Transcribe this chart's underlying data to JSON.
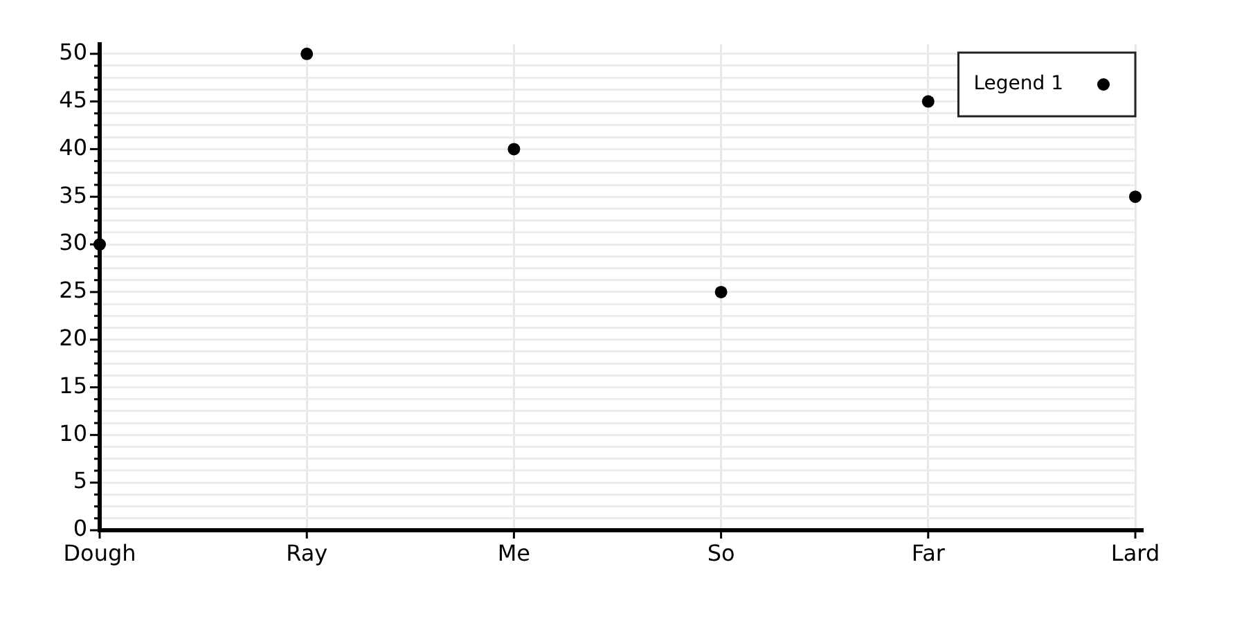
{
  "chart_data": {
    "type": "scatter",
    "categories": [
      "Dough",
      "Ray",
      "Me",
      "So",
      "Far",
      "Lard"
    ],
    "series": [
      {
        "name": "Legend 1",
        "color": "#000000",
        "values": [
          30,
          50,
          40,
          25,
          45,
          35
        ]
      }
    ],
    "ylim": [
      0,
      51
    ],
    "yticks": [
      0,
      {
        "value": 1.25,
        "label": null
      },
      {
        "value": 2.5,
        "label": null
      },
      {
        "value": 3.75,
        "label": null
      },
      5,
      {
        "value": 6.25,
        "label": null
      },
      {
        "value": 7.5,
        "label": null
      },
      {
        "value": 8.75,
        "label": null
      },
      10,
      {
        "value": 11.25,
        "label": null
      },
      {
        "value": 12.5,
        "label": null
      },
      {
        "value": 13.75,
        "label": null
      },
      15,
      {
        "value": 16.25,
        "label": null
      },
      {
        "value": 17.5,
        "label": null
      },
      {
        "value": 18.75,
        "label": null
      },
      20,
      {
        "value": 21.25,
        "label": null
      },
      {
        "value": 22.5,
        "label": null
      },
      {
        "value": 23.75,
        "label": null
      },
      25,
      {
        "value": 26.25,
        "label": null
      },
      {
        "value": 27.5,
        "label": null
      },
      {
        "value": 28.75,
        "label": null
      },
      30,
      {
        "value": 31.25,
        "label": null
      },
      {
        "value": 32.5,
        "label": null
      },
      {
        "value": 33.75,
        "label": null
      },
      35,
      {
        "value": 36.25,
        "label": null
      },
      {
        "value": 37.5,
        "label": null
      },
      {
        "value": 38.75,
        "label": null
      },
      40,
      {
        "value": 41.25,
        "label": null
      },
      {
        "value": 42.5,
        "label": null
      },
      {
        "value": 43.75,
        "label": null
      },
      45,
      {
        "value": 46.25,
        "label": null
      },
      {
        "value": 47.5,
        "label": null
      },
      {
        "value": 48.75,
        "label": null
      },
      50
    ],
    "grid": true,
    "legend": "top right",
    "marker": "circle"
  }
}
